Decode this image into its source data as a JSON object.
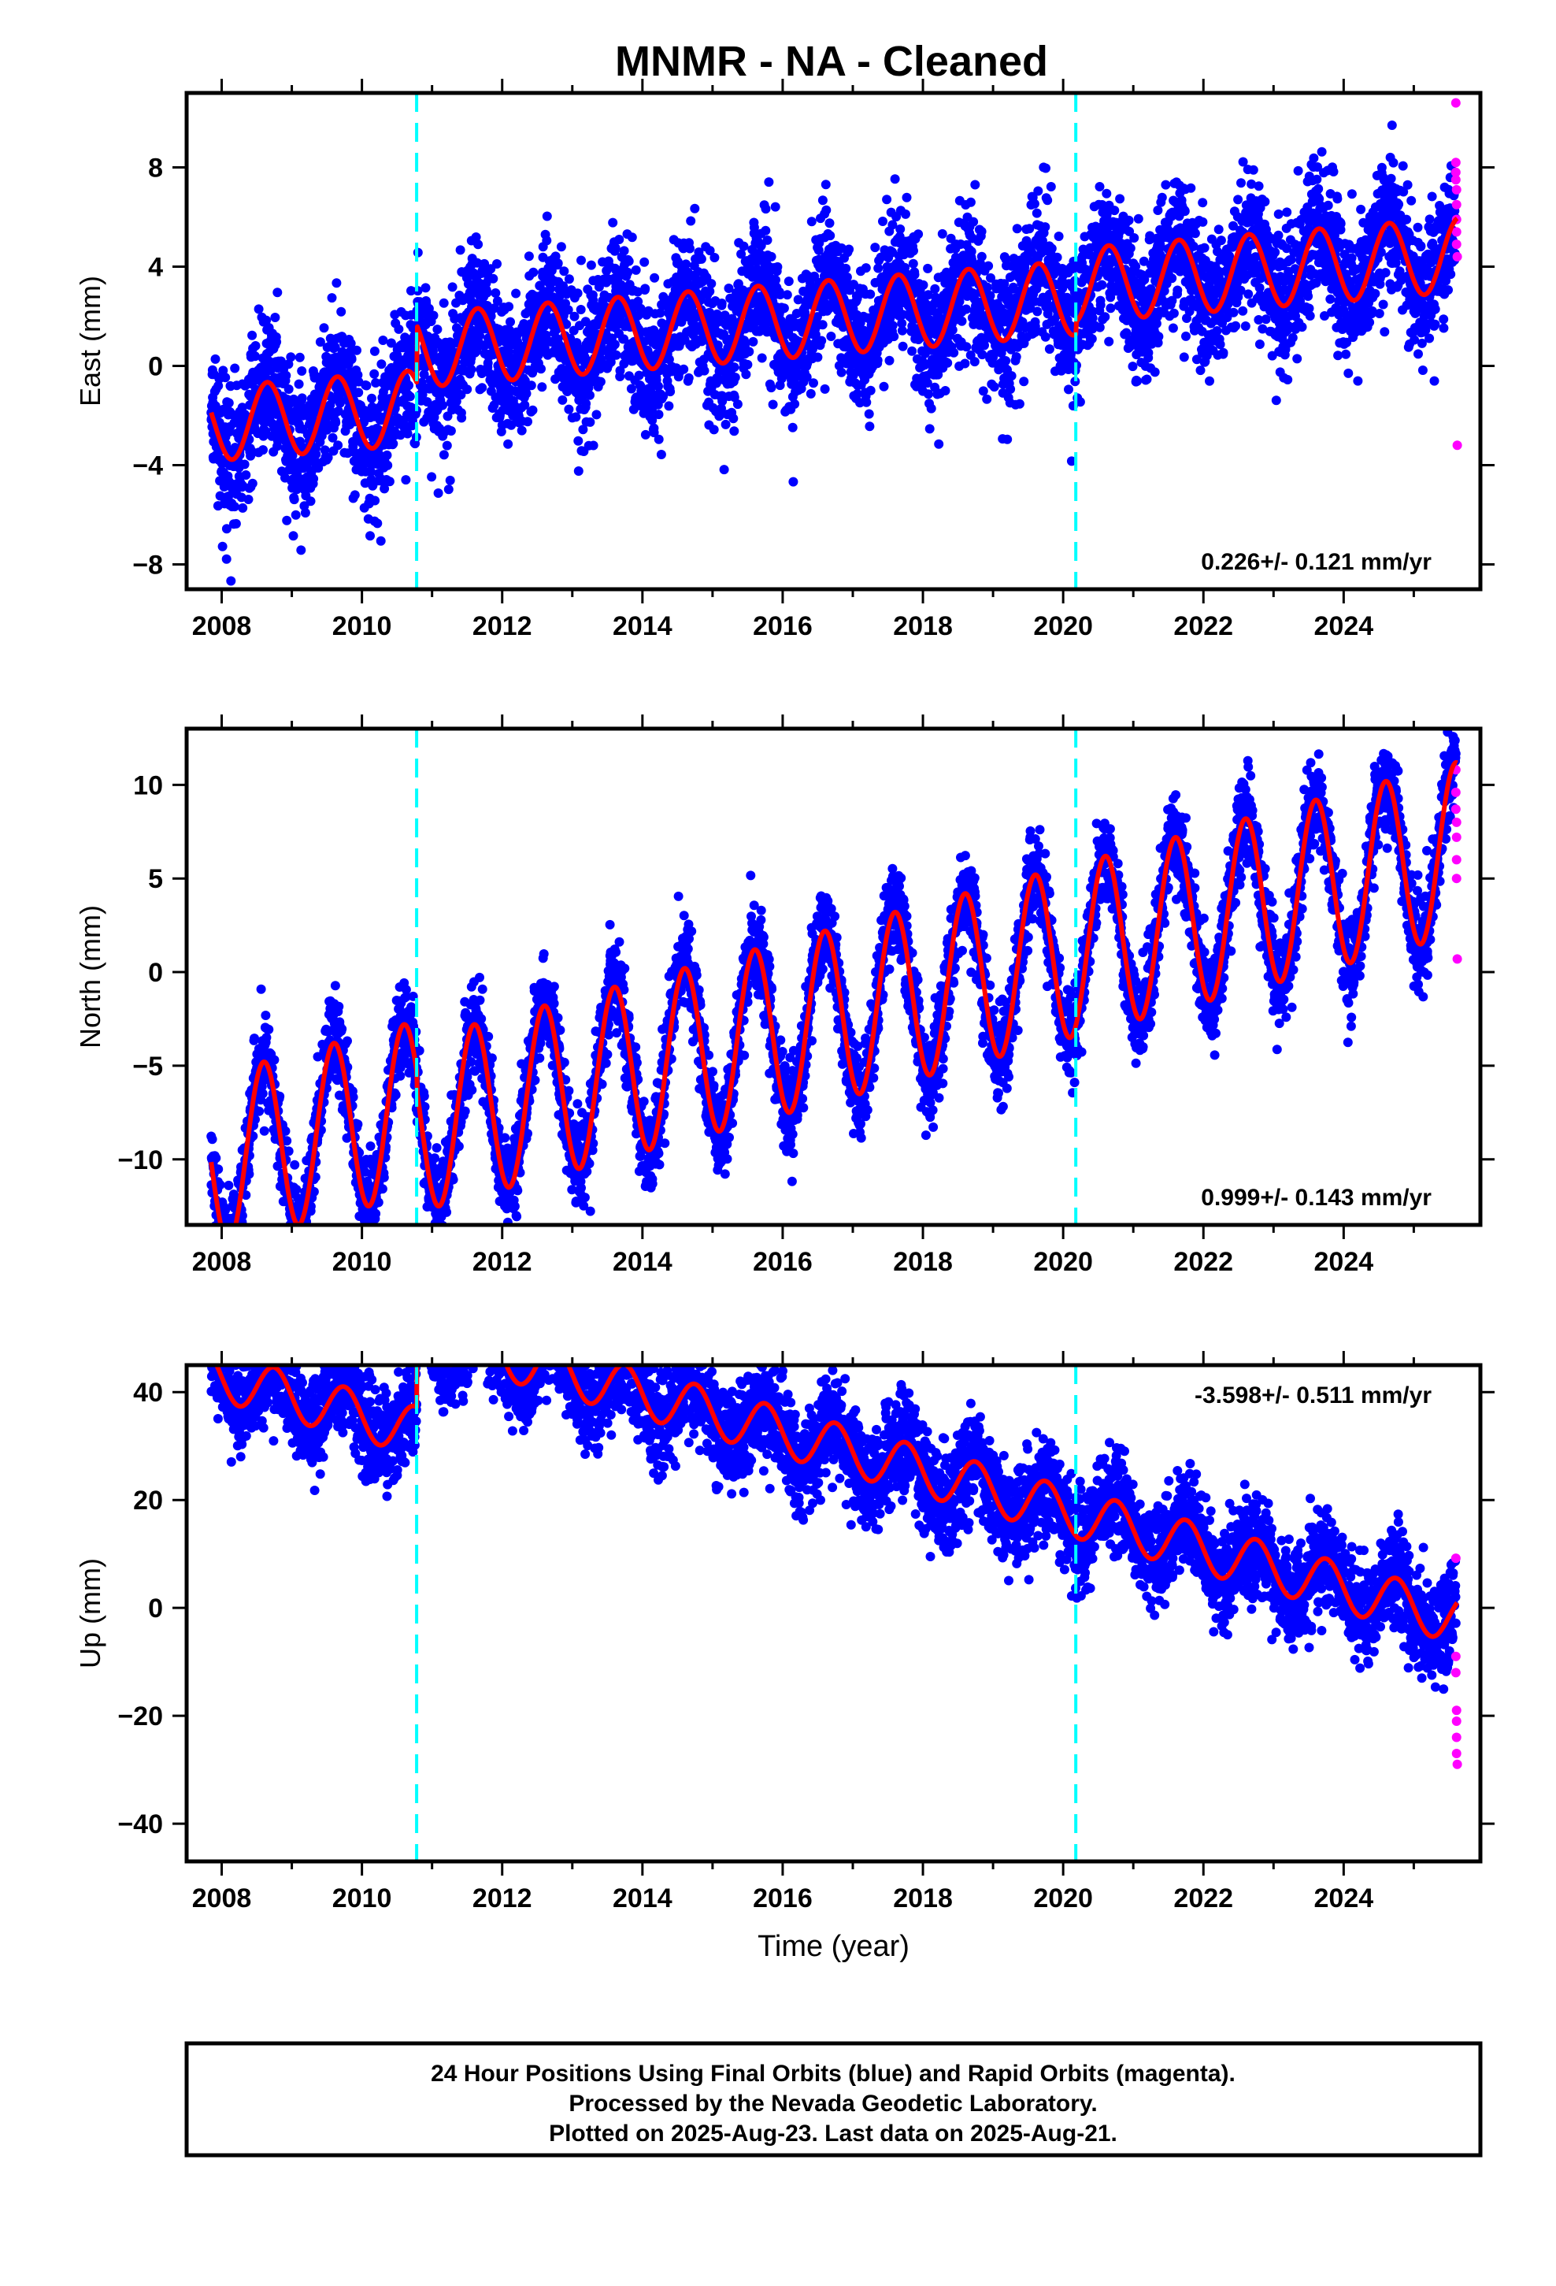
{
  "title": "MNMR  - NA - Cleaned",
  "footer": {
    "line1": "24 Hour Positions Using Final Orbits (blue) and Rapid Orbits (magenta).",
    "line2": "Processed by the Nevada Geodetic Laboratory.",
    "line3": "Plotted on 2025-Aug-23. Last data on 2025-Aug-21."
  },
  "colors": {
    "final_orbit_points": "#0000ff",
    "rapid_orbit_points": "#ff00ff",
    "model": "#ff0000",
    "equipment_change": "#00ffff"
  },
  "chart_data": [
    {
      "type": "scatter",
      "id": "east",
      "ylabel": "East (mm)",
      "xlabel": "",
      "xlim": [
        2007.5,
        2025.95
      ],
      "ylim": [
        -9,
        11
      ],
      "x_ticks": [
        2008,
        2010,
        2012,
        2014,
        2016,
        2018,
        2020,
        2022,
        2024
      ],
      "y_ticks": [
        -8,
        -4,
        0,
        4,
        8
      ],
      "y_tick_labels": [
        "−8",
        "−4",
        "0",
        "4",
        "8"
      ],
      "rate": "0.226+/- 0.121 mm/yr",
      "rate_position": "bottom-right",
      "offset_epochs": [
        2010.78,
        2020.18
      ],
      "model": {
        "start": 2007.85,
        "end": 2025.62,
        "intercept": -0.5,
        "trend": 0.226,
        "seasonal_amplitude": 1.5,
        "seasonal_peak": 0.65,
        "offsets": [
          [
            2010.78,
            2.3
          ],
          [
            2020.18,
            0.5
          ]
        ]
      },
      "series": [
        {
          "name": "Final Orbits",
          "color": "#0000ff",
          "x_range": [
            2007.85,
            2025.6
          ],
          "scatter": 1.4
        },
        {
          "name": "Rapid Orbits",
          "color": "#ff00ff",
          "x": [
            2025.6,
            2025.6,
            2025.6,
            2025.6,
            2025.61,
            2025.61,
            2025.61,
            2025.61,
            2025.61,
            2025.62,
            2025.62
          ],
          "y": [
            10.6,
            8.2,
            7.8,
            7.5,
            7.1,
            6.5,
            5.9,
            5.4,
            4.9,
            4.4,
            -3.2
          ]
        }
      ]
    },
    {
      "type": "scatter",
      "id": "north",
      "ylabel": "North (mm)",
      "xlabel": "",
      "xlim": [
        2007.5,
        2025.95
      ],
      "ylim": [
        -13.5,
        13
      ],
      "x_ticks": [
        2008,
        2010,
        2012,
        2014,
        2016,
        2018,
        2020,
        2022,
        2024
      ],
      "y_ticks": [
        -10,
        -5,
        0,
        5,
        10
      ],
      "y_tick_labels": [
        "−10",
        "−5",
        "0",
        "5",
        "10"
      ],
      "rate": "0.999+/- 0.143 mm/yr",
      "rate_position": "bottom-right",
      "offset_epochs": [
        2010.78,
        2020.18
      ],
      "model": {
        "start": 2007.85,
        "end": 2025.62,
        "intercept": -2.0,
        "trend": 0.999,
        "seasonal_amplitude": 4.6,
        "seasonal_peak": 0.6,
        "offsets": [
          [
            2010.78,
            -1.0
          ]
        ]
      },
      "series": [
        {
          "name": "Final Orbits",
          "color": "#0000ff",
          "x_range": [
            2007.85,
            2025.6
          ],
          "scatter": 1.2
        },
        {
          "name": "Rapid Orbits",
          "color": "#ff00ff",
          "x": [
            2025.6,
            2025.6,
            2025.6,
            2025.61,
            2025.61,
            2025.61,
            2025.61,
            2025.62
          ],
          "y": [
            10.8,
            9.6,
            8.7,
            8.0,
            7.2,
            6.0,
            5.0,
            0.7
          ]
        }
      ]
    },
    {
      "type": "scatter",
      "id": "up",
      "ylabel": "Up (mm)",
      "xlabel": "Time (year)",
      "xlim": [
        2007.5,
        2025.95
      ],
      "ylim": [
        -47,
        45
      ],
      "x_ticks": [
        2008,
        2010,
        2012,
        2014,
        2016,
        2018,
        2020,
        2022,
        2024
      ],
      "y_ticks": [
        -40,
        -20,
        0,
        20,
        40
      ],
      "y_tick_labels": [
        "−40",
        "−20",
        "0",
        "20",
        "40"
      ],
      "rate": "-3.598+/- 0.511 mm/yr",
      "rate_position": "top-right",
      "offset_epochs": [
        2010.78,
        2020.18
      ],
      "model": {
        "start": 2007.85,
        "end": 2025.62,
        "intercept": 14.0,
        "trend": -3.598,
        "seasonal_amplitude": 4.5,
        "seasonal_peak": 0.75,
        "offsets": [
          [
            2010.78,
            18.5
          ]
        ]
      },
      "series": [
        {
          "name": "Final Orbits",
          "color": "#0000ff",
          "x_range": [
            2007.85,
            2025.6
          ],
          "scatter": 4.5
        },
        {
          "name": "Rapid Orbits",
          "color": "#ff00ff",
          "x": [
            2025.6,
            2025.6,
            2025.6,
            2025.61,
            2025.61,
            2025.61,
            2025.61,
            2025.62
          ],
          "y": [
            9.2,
            -9.0,
            -12.0,
            -19.0,
            -21.0,
            -24.0,
            -27.0,
            -29.0
          ]
        }
      ]
    }
  ]
}
